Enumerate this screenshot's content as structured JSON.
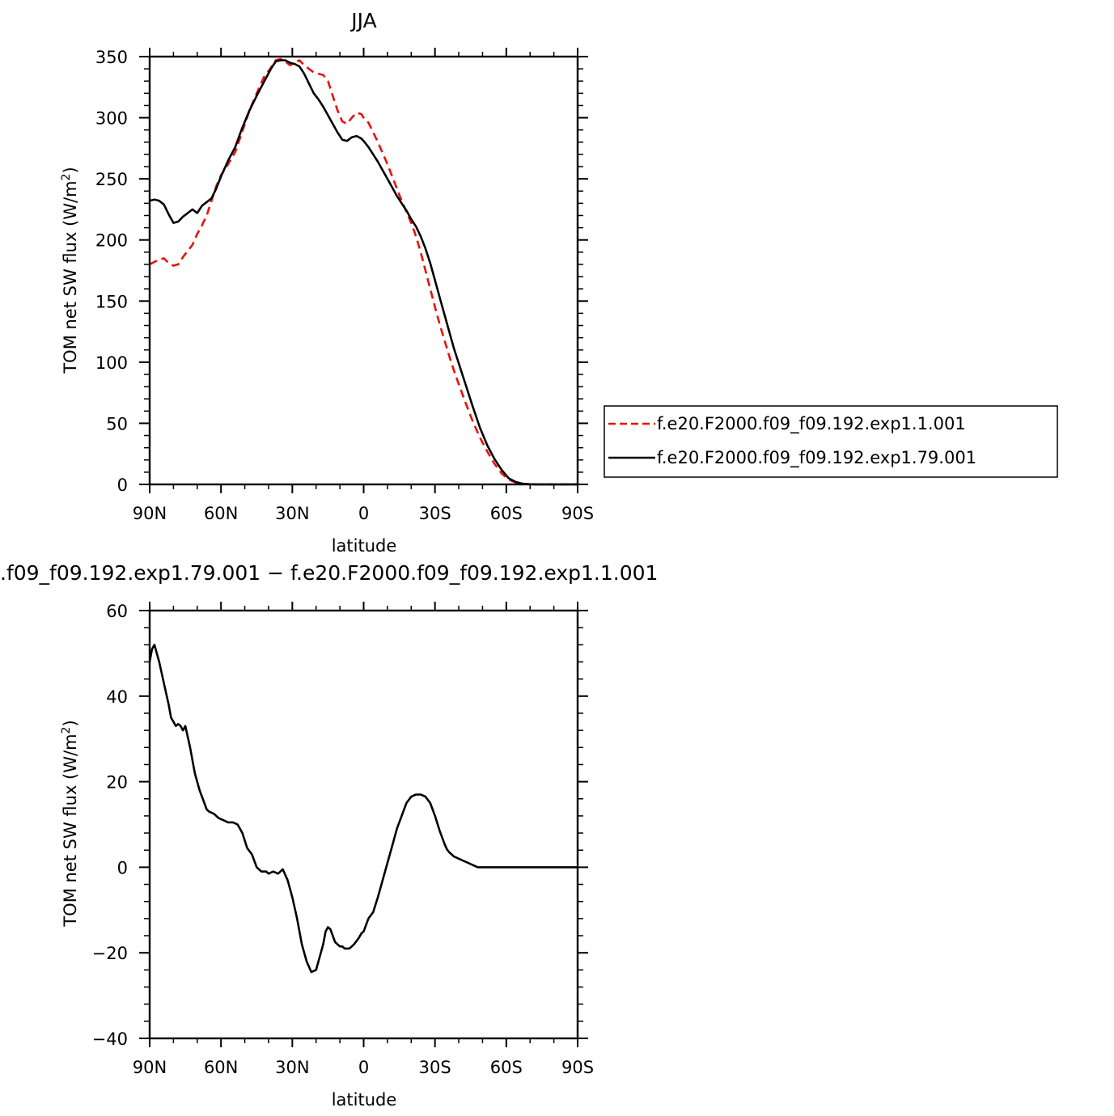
{
  "chart_data": [
    {
      "type": "line",
      "title": "JJA",
      "xlabel": "latitude",
      "ylabel": "TOM net SW flux (W/m",
      "ylabel_sup": "2",
      "ylabel_end": ")",
      "xlim": [
        90,
        -90
      ],
      "ylim": [
        0,
        350
      ],
      "x_ticks": [
        90,
        60,
        30,
        0,
        -30,
        -60,
        -90
      ],
      "x_tick_labels": [
        "90N",
        "60N",
        "30N",
        "0",
        "30S",
        "60S",
        "90S"
      ],
      "y_ticks": [
        0,
        50,
        100,
        150,
        200,
        250,
        300,
        350
      ],
      "y_tick_labels": [
        "0",
        "50",
        "100",
        "150",
        "200",
        "250",
        "300",
        "350"
      ],
      "legend_position": "right",
      "series": [
        {
          "name": "f.e20.F2000.f09_f09.192.exp1.1.001",
          "color": "#e8120c",
          "dash": true,
          "x": [
            90,
            88,
            86,
            84,
            82,
            80,
            78,
            76,
            74,
            72,
            70,
            68,
            66,
            64,
            62,
            60,
            57,
            54,
            51,
            48,
            45,
            42,
            39,
            37,
            35,
            33,
            31,
            29,
            27,
            25,
            23,
            21,
            19,
            17,
            15,
            13,
            11,
            9,
            7,
            5,
            3,
            1,
            0,
            -2,
            -4,
            -6,
            -8,
            -10,
            -12,
            -14,
            -16,
            -18,
            -20,
            -22,
            -24,
            -26,
            -28,
            -30,
            -32,
            -34,
            -36,
            -38,
            -40,
            -43,
            -46,
            -49,
            -52,
            -55,
            -58,
            -61,
            -64,
            -67,
            -70,
            -73,
            -76,
            -80,
            -85,
            -90
          ],
          "y": [
            180,
            182,
            184,
            185,
            181,
            179,
            180,
            186,
            191,
            196,
            205,
            212,
            220,
            232,
            244,
            253,
            262,
            272,
            289,
            306,
            320,
            333,
            341,
            347,
            348,
            346,
            343,
            345,
            347,
            343,
            340,
            337,
            336,
            335,
            330,
            318,
            306,
            297,
            295,
            300,
            304,
            303,
            300,
            296,
            288,
            280,
            271,
            262,
            252,
            242,
            232,
            223,
            214,
            203,
            190,
            175,
            160,
            145,
            131,
            118,
            105,
            93,
            82,
            66,
            51,
            38,
            27,
            17,
            9,
            4,
            1.5,
            0.5,
            0.1,
            0,
            0,
            0,
            0,
            0
          ]
        },
        {
          "name": "f.e20.F2000.f09_f09.192.exp1.79.001",
          "color": "#000000",
          "dash": false,
          "x": [
            90,
            88,
            86,
            84,
            82,
            80,
            78,
            76,
            74,
            72,
            70,
            68,
            66,
            64,
            62,
            60,
            57,
            54,
            51,
            48,
            45,
            42,
            39,
            37,
            35,
            33,
            31,
            29,
            27,
            25,
            23,
            21,
            19,
            17,
            15,
            13,
            11,
            9,
            7,
            5,
            3,
            1,
            0,
            -2,
            -4,
            -6,
            -8,
            -10,
            -12,
            -14,
            -16,
            -18,
            -20,
            -22,
            -24,
            -26,
            -28,
            -30,
            -32,
            -34,
            -36,
            -38,
            -40,
            -43,
            -46,
            -49,
            -52,
            -55,
            -58,
            -61,
            -64,
            -67,
            -70,
            -73,
            -76,
            -80,
            -85,
            -90
          ],
          "y": [
            232,
            233,
            232,
            229,
            221,
            214,
            215,
            219,
            222,
            225,
            222,
            228,
            231,
            234,
            242,
            252,
            265,
            276,
            292,
            306,
            318,
            329,
            340,
            346,
            347,
            347,
            345,
            344,
            342,
            336,
            328,
            320,
            315,
            309,
            302,
            295,
            288,
            282,
            281,
            284,
            285,
            283,
            281,
            276,
            270,
            264,
            257,
            250,
            243,
            236,
            230,
            224,
            217,
            211,
            203,
            193,
            181,
            167,
            153,
            139,
            125,
            111,
            99,
            81,
            63,
            46,
            32,
            21,
            12,
            5,
            2,
            0.5,
            0.1,
            0,
            0,
            0,
            0,
            0
          ]
        }
      ]
    },
    {
      "type": "line",
      "title": ".f09_f09.192.exp1.79.001 − f.e20.F2000.f09_f09.192.exp1.1.001",
      "xlabel": "latitude",
      "ylabel": "TOM net SW flux (W/m",
      "ylabel_sup": "2",
      "ylabel_end": ")",
      "xlim": [
        90,
        -90
      ],
      "ylim": [
        -40,
        60
      ],
      "x_ticks": [
        90,
        60,
        30,
        0,
        -30,
        -60,
        -90
      ],
      "x_tick_labels": [
        "90N",
        "60N",
        "30N",
        "0",
        "30S",
        "60S",
        "90S"
      ],
      "y_ticks": [
        -40,
        -20,
        0,
        20,
        40,
        60
      ],
      "y_tick_labels": [
        "−40",
        "−20",
        "0",
        "20",
        "40",
        "60"
      ],
      "series": [
        {
          "color": "#000000",
          "dash": false,
          "x": [
            90,
            89,
            88,
            86,
            84,
            82,
            81,
            80,
            79,
            78,
            77,
            76,
            75,
            73,
            71,
            69,
            67,
            66,
            65,
            63,
            61,
            59,
            57,
            55,
            53,
            51,
            49,
            47,
            45,
            43,
            41,
            40,
            38,
            36,
            34,
            32,
            30,
            28,
            26,
            24,
            22,
            20,
            18,
            17,
            16,
            15,
            14,
            12,
            10,
            9,
            8,
            7,
            6,
            5,
            4,
            2,
            1,
            0,
            -2,
            -4,
            -6,
            -8,
            -10,
            -12,
            -14,
            -16,
            -18,
            -20,
            -22,
            -24,
            -26,
            -28,
            -30,
            -32,
            -34,
            -35,
            -36,
            -37,
            -38,
            -40,
            -42,
            -44,
            -46,
            -48,
            -50,
            -53,
            -56,
            -60,
            -65,
            -70,
            -75,
            -90
          ],
          "y": [
            48,
            51,
            52,
            48,
            43,
            38,
            35,
            34,
            33,
            33.5,
            33,
            32,
            33,
            28,
            22,
            18,
            15,
            13.5,
            13,
            12.5,
            11.5,
            11,
            10.5,
            10.5,
            10,
            8,
            4.5,
            3,
            0,
            -1,
            -1,
            -1.5,
            -1,
            -1.5,
            -0.5,
            -3,
            -7,
            -12,
            -18,
            -22,
            -24.5,
            -24,
            -20,
            -18,
            -15,
            -14,
            -14.5,
            -17.5,
            -18.5,
            -18.5,
            -19,
            -19,
            -19,
            -18.5,
            -18,
            -16.5,
            -15.5,
            -15,
            -12,
            -10.5,
            -7,
            -3,
            1,
            5,
            9,
            12,
            15,
            16.5,
            17,
            17,
            16.5,
            15,
            12,
            8.5,
            5.5,
            4.2,
            3.5,
            3,
            2.5,
            2,
            1.5,
            1,
            0.5,
            0,
            0,
            0,
            0,
            0,
            0,
            0,
            0,
            0
          ]
        }
      ]
    }
  ]
}
